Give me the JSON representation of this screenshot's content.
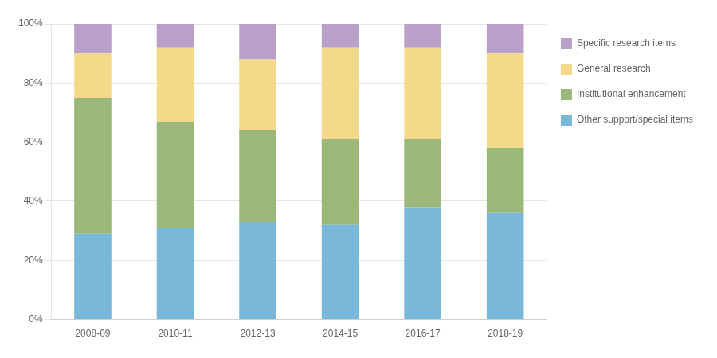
{
  "chart_data": {
    "type": "bar",
    "stacked": true,
    "categories": [
      "2008-09",
      "2010-11",
      "2012-13",
      "2014-15",
      "2016-17",
      "2018-19"
    ],
    "series": [
      {
        "name": "Other support/special items",
        "color": "#7ab8d9",
        "values": [
          0.29,
          0.31,
          0.33,
          0.32,
          0.38,
          0.36
        ]
      },
      {
        "name": "Institutional enhancement",
        "color": "#9bb87a",
        "values": [
          0.46,
          0.36,
          0.31,
          0.29,
          0.23,
          0.22
        ]
      },
      {
        "name": "General research",
        "color": "#f5d98b",
        "values": [
          0.15,
          0.25,
          0.24,
          0.31,
          0.31,
          0.32
        ]
      },
      {
        "name": "Specific research items",
        "color": "#b8a0c8",
        "values": [
          0.1,
          0.08,
          0.12,
          0.08,
          0.08,
          0.1
        ]
      }
    ],
    "ylim": [
      0,
      1.0
    ],
    "yticks": [
      {
        "value": 0.0,
        "label": "0%"
      },
      {
        "value": 0.2,
        "label": "20%"
      },
      {
        "value": 0.4,
        "label": "40%"
      },
      {
        "value": 0.6,
        "label": "60%"
      },
      {
        "value": 0.8,
        "label": "80%"
      },
      {
        "value": 1.0,
        "label": "100%"
      }
    ],
    "grid": true,
    "legend": "right"
  }
}
